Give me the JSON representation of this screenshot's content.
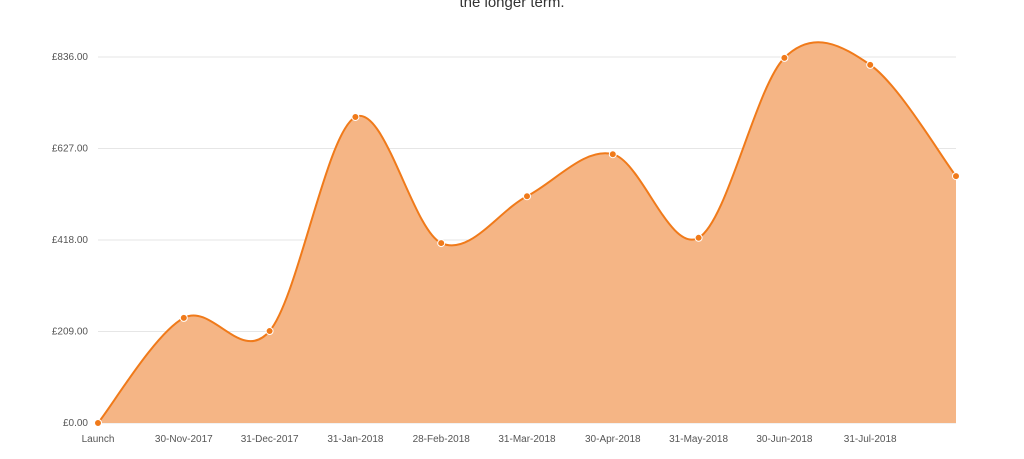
{
  "chart_data": {
    "type": "area",
    "title": "the longer term.",
    "categories": [
      "Launch",
      "30-Nov-2017",
      "31-Dec-2017",
      "31-Jan-2018",
      "28-Feb-2018",
      "31-Mar-2018",
      "30-Apr-2018",
      "31-May-2018",
      "30-Jun-2018",
      "31-Jul-2018",
      null
    ],
    "values": [
      0,
      240,
      210,
      699,
      411,
      518,
      614,
      423,
      834,
      818,
      564
    ],
    "color": "#f07a1a",
    "fill": "#f5b585",
    "ylim": [
      0,
      836
    ],
    "yticks": [
      {
        "value": 0,
        "label": "£0.00"
      },
      {
        "value": 209,
        "label": "£209.00"
      },
      {
        "value": 418,
        "label": "£418.00"
      },
      {
        "value": 627,
        "label": "£627.00"
      },
      {
        "value": 836,
        "label": "£836.00"
      }
    ],
    "grid": true
  }
}
